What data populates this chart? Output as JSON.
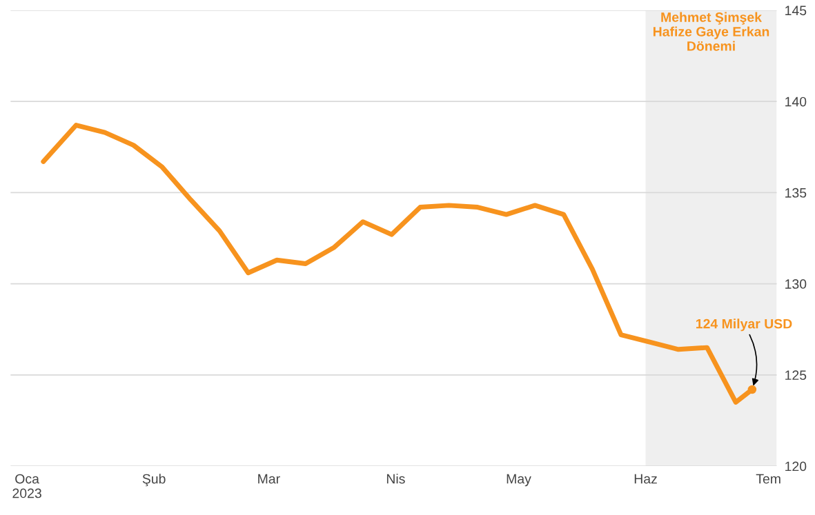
{
  "chart_data": {
    "type": "line",
    "x": [
      "2023-01-05",
      "2023-01-13",
      "2023-01-20",
      "2023-01-27",
      "2023-02-03",
      "2023-02-10",
      "2023-02-17",
      "2023-02-24",
      "2023-03-03",
      "2023-03-10",
      "2023-03-17",
      "2023-03-24",
      "2023-03-31",
      "2023-04-07",
      "2023-04-14",
      "2023-04-21",
      "2023-04-28",
      "2023-05-05",
      "2023-05-12",
      "2023-05-19",
      "2023-05-26",
      "2023-06-02",
      "2023-06-09",
      "2023-06-16",
      "2023-06-23",
      "2023-06-27"
    ],
    "series": [
      {
        "color": "#f7931e",
        "values": [
          136.7,
          138.7,
          138.3,
          137.6,
          136.4,
          134.6,
          132.9,
          130.6,
          131.3,
          131.1,
          132.0,
          133.4,
          132.7,
          134.2,
          134.3,
          134.2,
          133.8,
          134.3,
          133.8,
          130.8,
          127.2,
          126.8,
          126.4,
          126.5,
          123.5,
          124.2
        ]
      }
    ],
    "xlim": [
      "2022-12-28",
      "2023-07-03"
    ],
    "xticks": [
      {
        "value": "2023-01-01",
        "label": "Oca\n2023"
      },
      {
        "value": "2023-02-01",
        "label": "Şub"
      },
      {
        "value": "2023-03-01",
        "label": "Mar"
      },
      {
        "value": "2023-04-01",
        "label": "Nis"
      },
      {
        "value": "2023-05-01",
        "label": "May"
      },
      {
        "value": "2023-06-01",
        "label": "Haz"
      },
      {
        "value": "2023-07-01",
        "label": "Tem"
      }
    ],
    "ylim": [
      120,
      145
    ],
    "yticks": [
      120,
      125,
      130,
      135,
      140,
      145
    ],
    "grid": "y",
    "line_style": "solid",
    "bands": [
      {
        "axis": "x",
        "from": "2023-06-01",
        "to": "2023-07-03",
        "label": "Mehmet Şimşek\nHafize Gaye Erkan\nDönemi",
        "color": "#efefef"
      }
    ],
    "annotations": [
      {
        "text": "124 Milyar USD",
        "x": "2023-06-27",
        "y": 124.2
      }
    ]
  }
}
